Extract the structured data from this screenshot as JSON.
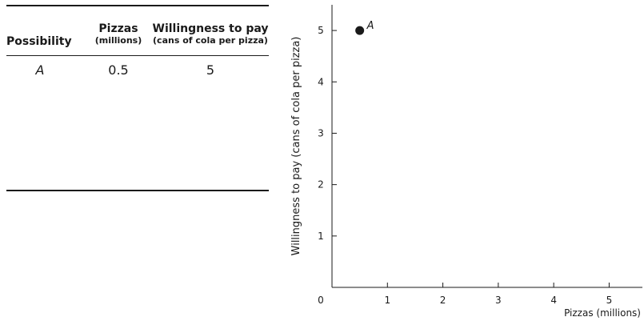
{
  "table": {
    "headers": {
      "possibility": "Possibility",
      "pizzas": "Pizzas",
      "pizzas_unit": "(millions)",
      "wtp": "Willingness to pay",
      "wtp_unit": "(cans of cola per pizza)"
    },
    "rows": [
      {
        "possibility": "A",
        "pizzas": "0.5",
        "wtp": "5"
      }
    ]
  },
  "chart_data": {
    "type": "scatter",
    "xlabel": "Pizzas (millions)",
    "ylabel": "Willingness to pay (cans of cola per pizza)",
    "xlim": [
      0,
      5.6
    ],
    "ylim": [
      0,
      5.5
    ],
    "x_ticks": [
      0,
      1,
      2,
      3,
      4,
      5
    ],
    "y_ticks": [
      1,
      2,
      3,
      4,
      5
    ],
    "grid": false,
    "points": [
      {
        "label": "A",
        "x": 0.5,
        "y": 5
      }
    ],
    "marker_color": "#1a1a1a"
  }
}
